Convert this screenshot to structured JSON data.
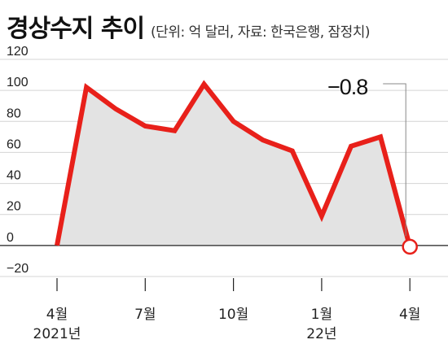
{
  "header": {
    "title": "경상수지 추이",
    "subtitle": "(단위: 억 달러, 자료: 한국은행, 잠정치)"
  },
  "colors": {
    "line": "#e8201a",
    "area": "#e3e3e3",
    "grid": "#d4d4d4",
    "axis": "#222222"
  },
  "chart_data": {
    "type": "area",
    "title": "경상수지 추이",
    "unit": "억 달러",
    "x": [
      "2021-04",
      "2021-05",
      "2021-06",
      "2021-07",
      "2021-08",
      "2021-09",
      "2021-10",
      "2021-11",
      "2021-12",
      "2022-01",
      "2022-02",
      "2022-03",
      "2022-04"
    ],
    "x_tick_labels": [
      {
        "x": "2021-04",
        "lines": [
          "4월",
          "2021년"
        ]
      },
      {
        "x": "2021-07",
        "lines": [
          "7월"
        ]
      },
      {
        "x": "2021-10",
        "lines": [
          "10월"
        ]
      },
      {
        "x": "2022-01",
        "lines": [
          "1월",
          "22년"
        ]
      },
      {
        "x": "2022-04",
        "lines": [
          "4월"
        ]
      }
    ],
    "series": [
      {
        "values": [
          0,
          102,
          88,
          77,
          74,
          104,
          80,
          68,
          61,
          19,
          64,
          70,
          -0.8
        ]
      }
    ],
    "ylim": [
      -20,
      120
    ],
    "yticks": [
      -20,
      0,
      20,
      40,
      60,
      80,
      100,
      120
    ],
    "grid": true,
    "annotations": [
      {
        "x": "2022-04",
        "y": -0.8,
        "text": "−0.8"
      }
    ]
  }
}
